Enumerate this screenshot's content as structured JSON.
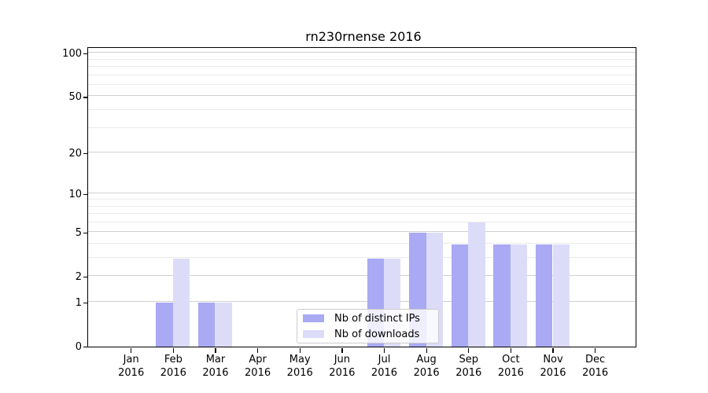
{
  "title": "rn230rnense 2016",
  "colors": {
    "distinct_ips": "#a9a9f4",
    "downloads": "#dcdcf9",
    "axis": "#000000",
    "grid_major": "#d0d0d0",
    "grid_minor": "#ebebeb",
    "legend_border": "#cccccc"
  },
  "x_axis": {
    "year": "2016",
    "months": [
      "Jan",
      "Feb",
      "Mar",
      "Apr",
      "May",
      "Jun",
      "Jul",
      "Aug",
      "Sep",
      "Oct",
      "Nov",
      "Dec"
    ]
  },
  "y_axis": {
    "ticks": [
      {
        "label": "100",
        "value": 100
      },
      {
        "label": "50",
        "value": 50
      },
      {
        "label": "20",
        "value": 20
      },
      {
        "label": "10",
        "value": 10
      },
      {
        "label": "5",
        "value": 5
      },
      {
        "label": "2",
        "value": 2
      },
      {
        "label": "1",
        "value": 1
      },
      {
        "label": "0",
        "value": 0
      }
    ]
  },
  "legend": {
    "items": [
      {
        "label": "Nb of distinct IPs",
        "color": "#a9a9f4"
      },
      {
        "label": "Nb of downloads",
        "color": "#dcdcf9"
      }
    ]
  },
  "chart_data": {
    "type": "bar",
    "title": "rn230rnense 2016",
    "categories": [
      "Jan 2016",
      "Feb 2016",
      "Mar 2016",
      "Apr 2016",
      "May 2016",
      "Jun 2016",
      "Jul 2016",
      "Aug 2016",
      "Sep 2016",
      "Oct 2016",
      "Nov 2016",
      "Dec 2016"
    ],
    "series": [
      {
        "name": "Nb of distinct IPs",
        "color": "#a9a9f4",
        "values": [
          0,
          1,
          1,
          0,
          0,
          0,
          3,
          5,
          4,
          4,
          4,
          0
        ]
      },
      {
        "name": "Nb of downloads",
        "color": "#dcdcf9",
        "values": [
          0,
          3,
          1,
          0,
          0,
          0,
          3,
          5,
          6,
          4,
          4,
          0
        ]
      }
    ],
    "yscale": "log1p",
    "ylim": [
      0,
      110
    ],
    "yticks": [
      0,
      1,
      2,
      5,
      10,
      20,
      50,
      100
    ],
    "minor_grid_values": [
      3,
      4,
      6,
      7,
      8,
      9,
      30,
      40,
      60,
      70,
      80,
      90
    ],
    "grid": true,
    "legend_position": "lower center"
  }
}
